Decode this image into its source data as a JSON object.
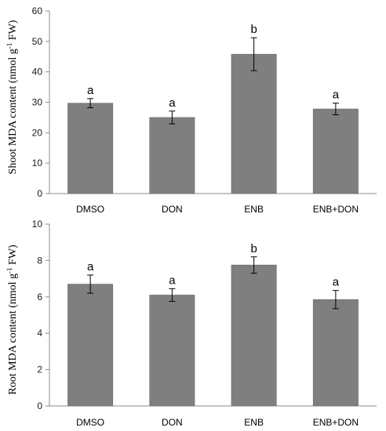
{
  "colors": {
    "bar": "#7f7f7f",
    "bar_edge": "#6a6a6a",
    "axis": "#8c8c8c",
    "text": "#000000"
  },
  "chart_data": [
    {
      "type": "bar",
      "categories": [
        "DMSO",
        "DON",
        "ENB",
        "ENB+DON"
      ],
      "values": [
        29.7,
        25.0,
        45.8,
        27.8
      ],
      "error": [
        1.5,
        2.1,
        5.4,
        1.9
      ],
      "significance": [
        "a",
        "a",
        "b",
        "a"
      ],
      "ylabel": {
        "pre": "Shoot MDA content (nmol g",
        "sup": "-1",
        "post": " FW)"
      },
      "ylim": [
        0,
        60
      ],
      "yticks": [
        0,
        10,
        20,
        30,
        40,
        50,
        60
      ],
      "grid": false
    },
    {
      "type": "bar",
      "categories": [
        "DMSO",
        "DON",
        "ENB",
        "ENB+DON"
      ],
      "values": [
        6.7,
        6.1,
        7.75,
        5.85
      ],
      "error": [
        0.5,
        0.35,
        0.45,
        0.5
      ],
      "significance": [
        "a",
        "a",
        "b",
        "a"
      ],
      "ylabel": {
        "pre": "Root MDA content (nmol g",
        "sup": "-1",
        "post": " FW)"
      },
      "ylim": [
        0,
        10
      ],
      "yticks": [
        0,
        2,
        4,
        6,
        8,
        10
      ],
      "grid": false
    }
  ]
}
